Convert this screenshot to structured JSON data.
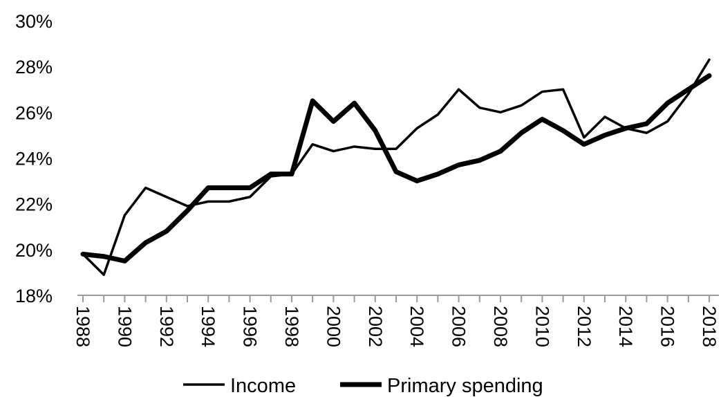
{
  "chart_data": {
    "type": "line",
    "title": "",
    "xlabel": "",
    "ylabel": "",
    "x": [
      1988,
      1989,
      1990,
      1991,
      1992,
      1993,
      1994,
      1995,
      1996,
      1997,
      1998,
      1999,
      2000,
      2001,
      2002,
      2003,
      2004,
      2005,
      2006,
      2007,
      2008,
      2009,
      2010,
      2011,
      2012,
      2013,
      2014,
      2015,
      2016,
      2017,
      2018
    ],
    "xlim": [
      1988,
      2018
    ],
    "x_tick_labels": [
      "1988",
      "1990",
      "1992",
      "1994",
      "1996",
      "1998",
      "2000",
      "2002",
      "2004",
      "2006",
      "2008",
      "2010",
      "2012",
      "2014",
      "2016",
      "2018"
    ],
    "ylim": [
      18,
      30
    ],
    "y_tick_labels": [
      "18%",
      "20%",
      "22%",
      "24%",
      "26%",
      "28%",
      "30%"
    ],
    "grid": false,
    "legend_position": "bottom",
    "series": [
      {
        "name": "Income",
        "line_style": "thin",
        "color": "#000000",
        "values": [
          19.8,
          18.9,
          21.5,
          22.7,
          22.3,
          21.9,
          22.1,
          22.1,
          22.3,
          23.2,
          23.3,
          24.6,
          24.3,
          24.5,
          24.4,
          24.4,
          25.3,
          25.9,
          27.0,
          26.2,
          26.0,
          26.3,
          26.9,
          27.0,
          24.9,
          25.8,
          25.3,
          25.1,
          25.6,
          26.8,
          28.3
        ]
      },
      {
        "name": "Primary spending",
        "line_style": "thick",
        "color": "#000000",
        "values": [
          19.8,
          19.7,
          19.5,
          20.3,
          20.8,
          21.7,
          22.7,
          22.7,
          22.7,
          23.3,
          23.3,
          26.5,
          25.6,
          26.4,
          25.2,
          23.4,
          23.0,
          23.3,
          23.7,
          23.9,
          24.3,
          25.1,
          25.7,
          25.2,
          24.6,
          25.0,
          25.3,
          25.5,
          26.4,
          27.0,
          27.6
        ]
      }
    ]
  }
}
